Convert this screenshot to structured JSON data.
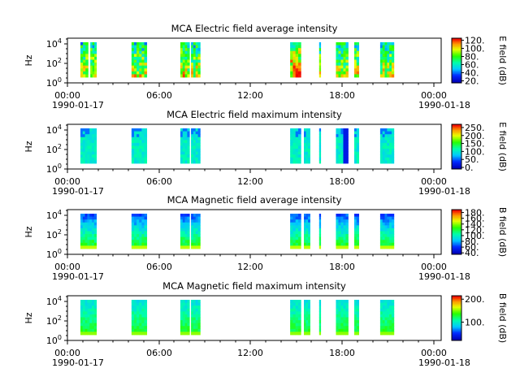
{
  "figure": {
    "colors": {
      "background": "#ffffff",
      "axis": "#000000",
      "no_data": "#ffffff"
    }
  },
  "chart_data": [
    {
      "type": "heatmap",
      "title": "MCA  Electric field average intensity",
      "ylabel": "Hz",
      "y_scale": "log",
      "y_ticks": [
        "10^0",
        "10^2",
        "10^4"
      ],
      "x_ticks": [
        "00:00",
        "06:00",
        "12:00",
        "18:00",
        "00:00"
      ],
      "x_dates": [
        "1990-01-17",
        "",
        "",
        "",
        "1990-01-18"
      ],
      "xlim": [
        "1990-01-17 00:00",
        "1990-01-18 00:30"
      ],
      "colorbar_label": "E field (dB)",
      "colorbar_ticks": [
        "20.",
        "40.",
        "60.",
        "80.",
        "100.",
        "120."
      ],
      "clim": [
        15,
        125
      ],
      "colormap": "rainbow",
      "data_intervals_hours": [
        [
          0.85,
          1.35
        ],
        [
          1.5,
          1.9
        ],
        [
          4.2,
          5.2
        ],
        [
          7.4,
          8.0
        ],
        [
          8.1,
          8.7
        ],
        [
          14.6,
          15.3
        ],
        [
          16.5,
          16.6
        ],
        [
          17.6,
          18.4
        ],
        [
          18.8,
          19.1
        ],
        [
          20.5,
          21.4
        ]
      ],
      "intensity_profile": "high low-frequency, decreasing with frequency; patchy mid-range"
    },
    {
      "type": "heatmap",
      "title": "MCA  Electric field maximum intensity",
      "ylabel": "Hz",
      "y_scale": "log",
      "y_ticks": [
        "10^0",
        "10^2",
        "10^4"
      ],
      "x_ticks": [
        "00:00",
        "06:00",
        "12:00",
        "18:00",
        "00:00"
      ],
      "x_dates": [
        "1990-01-17",
        "",
        "",
        "",
        "1990-01-18"
      ],
      "xlim": [
        "1990-01-17 00:00",
        "1990-01-18 00:30"
      ],
      "colorbar_label": "E field (dB)",
      "colorbar_ticks": [
        "0.",
        "50.",
        "100.",
        "150.",
        "200.",
        "250."
      ],
      "clim": [
        -10,
        270
      ],
      "colormap": "rainbow",
      "data_intervals_hours": [
        [
          0.85,
          1.9
        ],
        [
          4.2,
          5.2
        ],
        [
          7.4,
          8.0
        ],
        [
          8.1,
          8.7
        ],
        [
          14.6,
          15.3
        ],
        [
          15.5,
          15.9
        ],
        [
          16.5,
          16.6
        ],
        [
          17.6,
          18.4
        ],
        [
          18.8,
          19.1
        ],
        [
          20.5,
          21.4
        ]
      ],
      "intensity_profile": "mostly cyan-green, blue patches at high frequency"
    },
    {
      "type": "heatmap",
      "title": "MCA  Magnetic field average intensity",
      "ylabel": "Hz",
      "y_scale": "log",
      "y_ticks": [
        "10^0",
        "10^2",
        "10^4"
      ],
      "x_ticks": [
        "00:00",
        "06:00",
        "12:00",
        "18:00",
        "00:00"
      ],
      "x_dates": [
        "1990-01-17",
        "",
        "",
        "",
        "1990-01-18"
      ],
      "xlim": [
        "1990-01-17 00:00",
        "1990-01-18 00:30"
      ],
      "colorbar_label": "B field (dB)",
      "colorbar_ticks": [
        "40.",
        "60.",
        "80.",
        "100.",
        "120.",
        "140.",
        "160.",
        "180."
      ],
      "clim": [
        35,
        190
      ],
      "colormap": "rainbow",
      "data_intervals_hours": [
        [
          0.85,
          1.9
        ],
        [
          4.2,
          5.2
        ],
        [
          7.4,
          8.0
        ],
        [
          8.1,
          8.7
        ],
        [
          14.6,
          15.3
        ],
        [
          15.5,
          15.9
        ],
        [
          16.5,
          16.6
        ],
        [
          17.6,
          18.4
        ],
        [
          18.8,
          19.1
        ],
        [
          20.5,
          21.4
        ]
      ],
      "intensity_profile": "green-yellow low frequency, blue at high frequency"
    },
    {
      "type": "heatmap",
      "title": "MCA  Magnetic field maximum intensity",
      "ylabel": "Hz",
      "y_scale": "log",
      "y_ticks": [
        "10^0",
        "10^2",
        "10^4"
      ],
      "x_ticks": [
        "00:00",
        "06:00",
        "12:00",
        "18:00",
        "00:00"
      ],
      "x_dates": [
        "1990-01-17",
        "",
        "",
        "",
        "1990-01-18"
      ],
      "xlim": [
        "1990-01-17 00:00",
        "1990-01-18 00:30"
      ],
      "colorbar_label": "B field (dB)",
      "colorbar_ticks": [
        "100.",
        "200."
      ],
      "clim": [
        20,
        215
      ],
      "colormap": "rainbow",
      "data_intervals_hours": [
        [
          0.85,
          1.9
        ],
        [
          4.2,
          5.2
        ],
        [
          7.4,
          8.0
        ],
        [
          8.1,
          8.7
        ],
        [
          14.6,
          15.3
        ],
        [
          15.5,
          15.9
        ],
        [
          16.5,
          16.6
        ],
        [
          17.6,
          18.4
        ],
        [
          18.8,
          19.1
        ],
        [
          20.5,
          21.4
        ]
      ],
      "intensity_profile": "green-yellow low frequency, cyan-green at high frequency"
    }
  ]
}
